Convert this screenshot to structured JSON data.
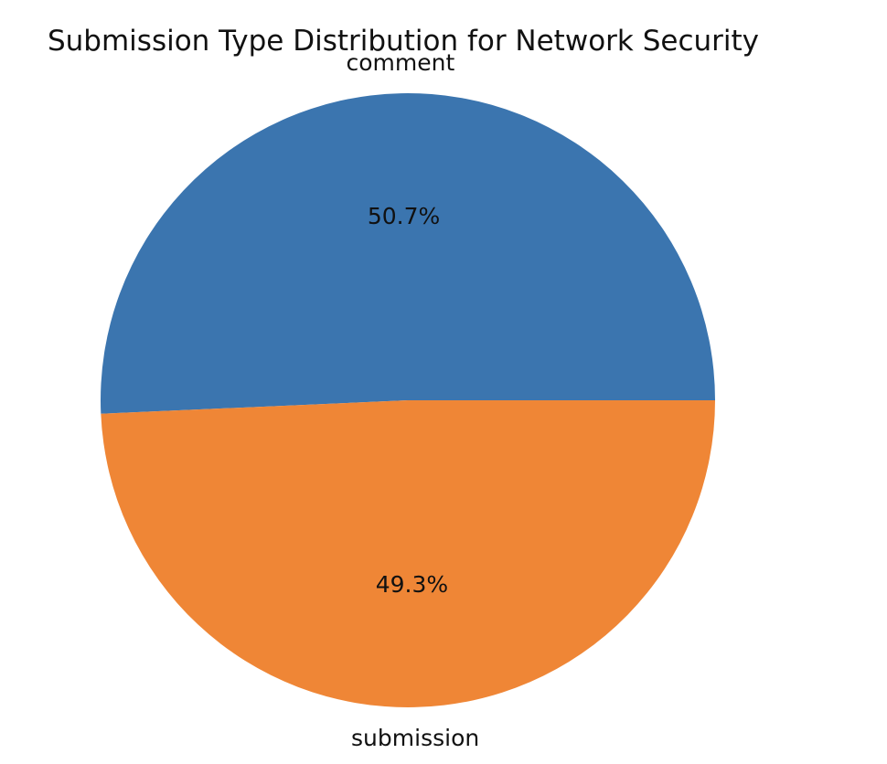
{
  "chart_data": {
    "type": "pie",
    "title": "Submission Type Distribution for Network Security",
    "slices": [
      {
        "label": "comment",
        "percent_label": "50.7%",
        "value": 50.7,
        "color": "#3B75AF"
      },
      {
        "label": "submission",
        "percent_label": "49.3%",
        "value": 49.3,
        "color": "#EF8636"
      }
    ],
    "start_angle_deg": 0,
    "direction": "counterclockwise",
    "legend": "none"
  }
}
